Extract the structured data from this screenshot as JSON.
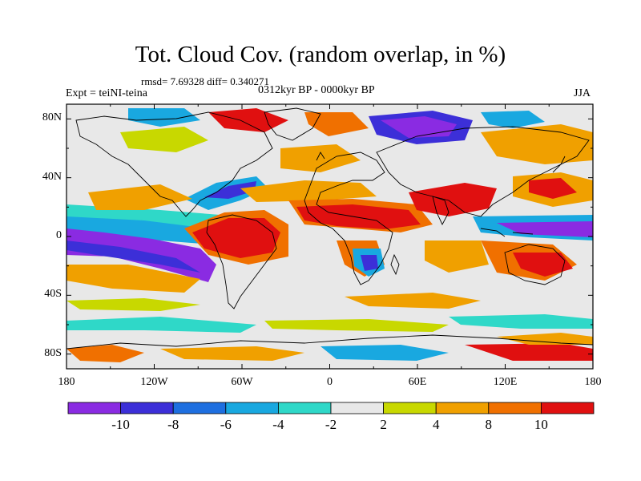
{
  "figure": {
    "title": "Tot. Cloud Cov. (random overlap, in %)",
    "stats": "rmsd= 7.69328 diff= 0.340271",
    "left_label": "Expt = teiNI-teina",
    "center_label": "0312kyr BP - 0000kyr BP",
    "right_label": "JJA"
  },
  "map": {
    "lat_tick_labels": [
      "80N",
      "40N",
      "0",
      "40S",
      "80S"
    ],
    "lon_tick_labels": [
      "180",
      "120W",
      "60W",
      "0",
      "60E",
      "120E",
      "180"
    ],
    "lon_range": [
      -180,
      180
    ],
    "lat_range": [
      -90,
      90
    ],
    "background_color": "#e8e8e8"
  },
  "colorbar": {
    "labels": [
      "-10",
      "-8",
      "-6",
      "-4",
      "-2",
      "2",
      "4",
      "8",
      "10"
    ],
    "colors": [
      "#8a2be2",
      "#3c2fd8",
      "#1e6fe0",
      "#19a8e0",
      "#2fd8c8",
      "#e8e8e8",
      "#c8d800",
      "#f0a000",
      "#f07000",
      "#e01010"
    ]
  }
}
